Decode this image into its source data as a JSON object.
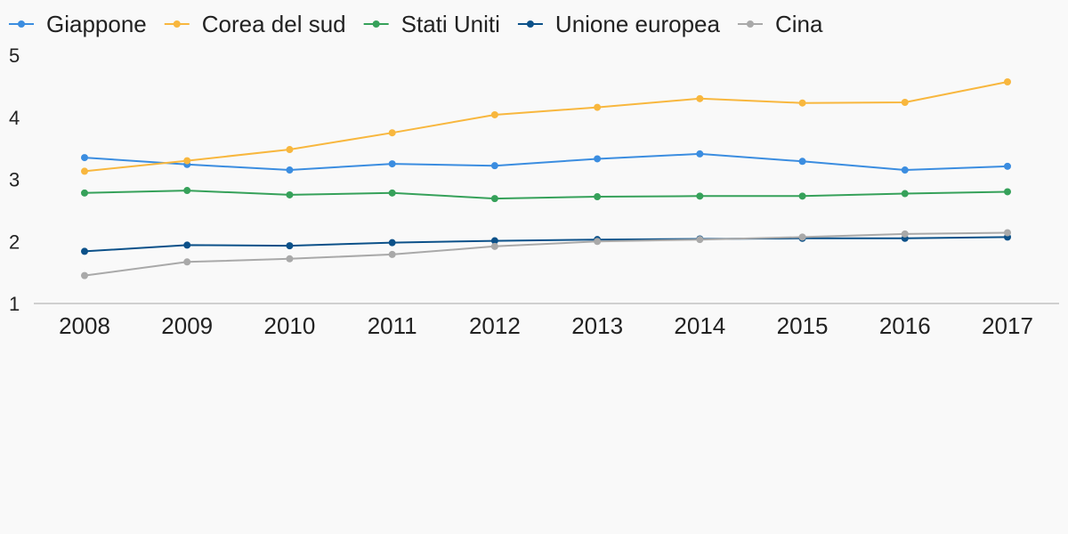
{
  "chart_data": {
    "type": "line",
    "categories": [
      "2008",
      "2009",
      "2010",
      "2011",
      "2012",
      "2013",
      "2014",
      "2015",
      "2016",
      "2017"
    ],
    "ylim": [
      1,
      5
    ],
    "yticks": [
      "1",
      "2",
      "3",
      "4",
      "5"
    ],
    "grid": false,
    "legend_position": "top",
    "series": [
      {
        "name": "Giappone",
        "color": "#3b8de0",
        "values": [
          3.35,
          3.24,
          3.15,
          3.25,
          3.22,
          3.33,
          3.41,
          3.29,
          3.15,
          3.21
        ]
      },
      {
        "name": "Corea del sud",
        "color": "#f8b73e",
        "values": [
          3.13,
          3.3,
          3.48,
          3.75,
          4.04,
          4.16,
          4.3,
          4.23,
          4.24,
          4.57
        ]
      },
      {
        "name": "Stati Uniti",
        "color": "#36a15a",
        "values": [
          2.78,
          2.82,
          2.75,
          2.78,
          2.69,
          2.72,
          2.73,
          2.73,
          2.77,
          2.8
        ]
      },
      {
        "name": "Unione europea",
        "color": "#0c5189",
        "values": [
          1.84,
          1.94,
          1.93,
          1.98,
          2.01,
          2.03,
          2.04,
          2.05,
          2.05,
          2.07
        ]
      },
      {
        "name": "Cina",
        "color": "#a9a9a9",
        "values": [
          1.45,
          1.67,
          1.72,
          1.79,
          1.92,
          2.0,
          2.03,
          2.07,
          2.12,
          2.14
        ]
      }
    ]
  }
}
